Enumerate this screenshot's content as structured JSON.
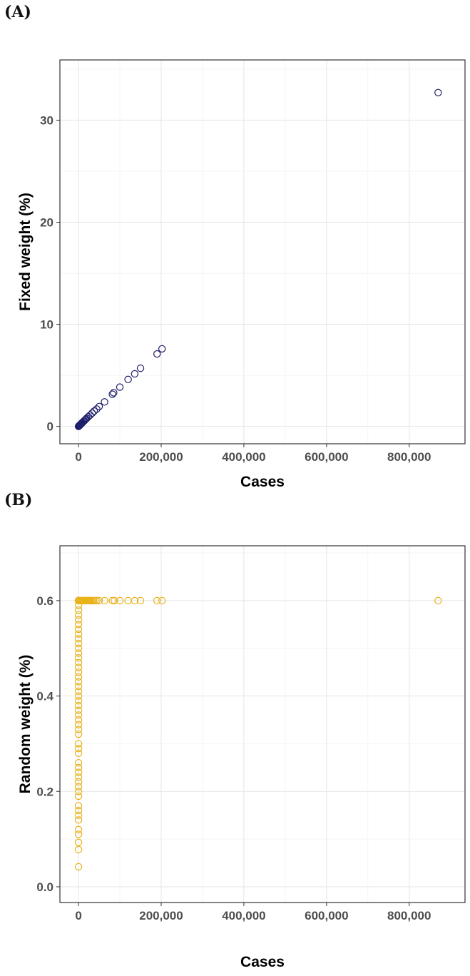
{
  "panels": [
    {
      "label": "(A)"
    },
    {
      "label": "(B)"
    }
  ],
  "chart_data": [
    {
      "type": "scatter",
      "panel": "(A)",
      "xlabel": "Cases",
      "ylabel": "Fixed weight (%)",
      "xlim": [
        -45000,
        935000
      ],
      "ylim": [
        -1.7,
        35.9
      ],
      "xticks": [
        0,
        200000,
        400000,
        600000,
        800000
      ],
      "xtick_labels": [
        "0",
        "200,000",
        "400,000",
        "600,000",
        "800,000"
      ],
      "yticks": [
        0,
        10,
        20,
        30
      ],
      "ytick_labels": [
        "0",
        "10",
        "20",
        "30"
      ],
      "grid": true,
      "marker_color": "#1f1f6b",
      "x": [
        0,
        500,
        1000,
        1500,
        2000,
        2500,
        3000,
        3500,
        4000,
        5000,
        6000,
        7000,
        8000,
        9000,
        10000,
        12000,
        14000,
        16000,
        18000,
        20000,
        24000,
        28000,
        33000,
        38000,
        44000,
        50000,
        63000,
        82000,
        85000,
        100000,
        120000,
        136000,
        150000,
        190000,
        202000,
        870000
      ],
      "y": [
        0.0,
        0.02,
        0.04,
        0.06,
        0.08,
        0.1,
        0.12,
        0.14,
        0.16,
        0.2,
        0.24,
        0.28,
        0.32,
        0.36,
        0.4,
        0.48,
        0.56,
        0.64,
        0.72,
        0.8,
        0.96,
        1.1,
        1.3,
        1.5,
        1.7,
        1.95,
        2.4,
        3.15,
        3.3,
        3.85,
        4.6,
        5.15,
        5.7,
        7.1,
        7.6,
        32.7
      ]
    },
    {
      "type": "scatter",
      "panel": "(B)",
      "xlabel": "Cases",
      "ylabel": "Random weight (%)",
      "xlim": [
        -45000,
        935000
      ],
      "ylim": [
        -0.033,
        0.715
      ],
      "xticks": [
        0,
        200000,
        400000,
        600000,
        800000
      ],
      "xtick_labels": [
        "0",
        "200,000",
        "400,000",
        "600,000",
        "800,000"
      ],
      "yticks": [
        0.0,
        0.2,
        0.4,
        0.6
      ],
      "ytick_labels": [
        "0.0",
        "0.2",
        "0.4",
        "0.6"
      ],
      "grid": true,
      "marker_color": "#e8b21a",
      "x": [
        0,
        0,
        0,
        0,
        0,
        0,
        0,
        0,
        0,
        0,
        0,
        0,
        0,
        0,
        0,
        0,
        0,
        0,
        0,
        0,
        0,
        0,
        0,
        0,
        0,
        0,
        0,
        0,
        0,
        0,
        0,
        0,
        0,
        0,
        0,
        0,
        0,
        0,
        0,
        0,
        0,
        0,
        0,
        0,
        0,
        0,
        0,
        0,
        0,
        0,
        0,
        0,
        0,
        0,
        0,
        0,
        0,
        0,
        2000,
        4000,
        6000,
        8000,
        10000,
        12000,
        14000,
        16000,
        18000,
        20000,
        22000,
        24000,
        26000,
        28000,
        30000,
        33000,
        36000,
        40000,
        44000,
        50000,
        63000,
        82000,
        87000,
        100000,
        120000,
        136000,
        150000,
        190000,
        202000,
        870000
      ],
      "y": [
        0.042,
        0.078,
        0.093,
        0.11,
        0.12,
        0.14,
        0.15,
        0.16,
        0.17,
        0.19,
        0.2,
        0.21,
        0.22,
        0.23,
        0.24,
        0.25,
        0.26,
        0.28,
        0.29,
        0.3,
        0.32,
        0.33,
        0.34,
        0.35,
        0.36,
        0.37,
        0.38,
        0.39,
        0.4,
        0.41,
        0.42,
        0.43,
        0.44,
        0.45,
        0.46,
        0.47,
        0.48,
        0.49,
        0.5,
        0.51,
        0.52,
        0.53,
        0.54,
        0.55,
        0.56,
        0.57,
        0.58,
        0.59,
        0.6,
        0.6,
        0.6,
        0.6,
        0.6,
        0.6,
        0.6,
        0.6,
        0.6,
        0.6,
        0.6,
        0.6,
        0.6,
        0.6,
        0.6,
        0.6,
        0.6,
        0.6,
        0.6,
        0.6,
        0.6,
        0.6,
        0.6,
        0.6,
        0.6,
        0.6,
        0.6,
        0.6,
        0.6,
        0.6,
        0.6,
        0.6,
        0.6,
        0.6,
        0.6,
        0.6,
        0.6,
        0.6,
        0.6,
        0.6
      ]
    }
  ]
}
